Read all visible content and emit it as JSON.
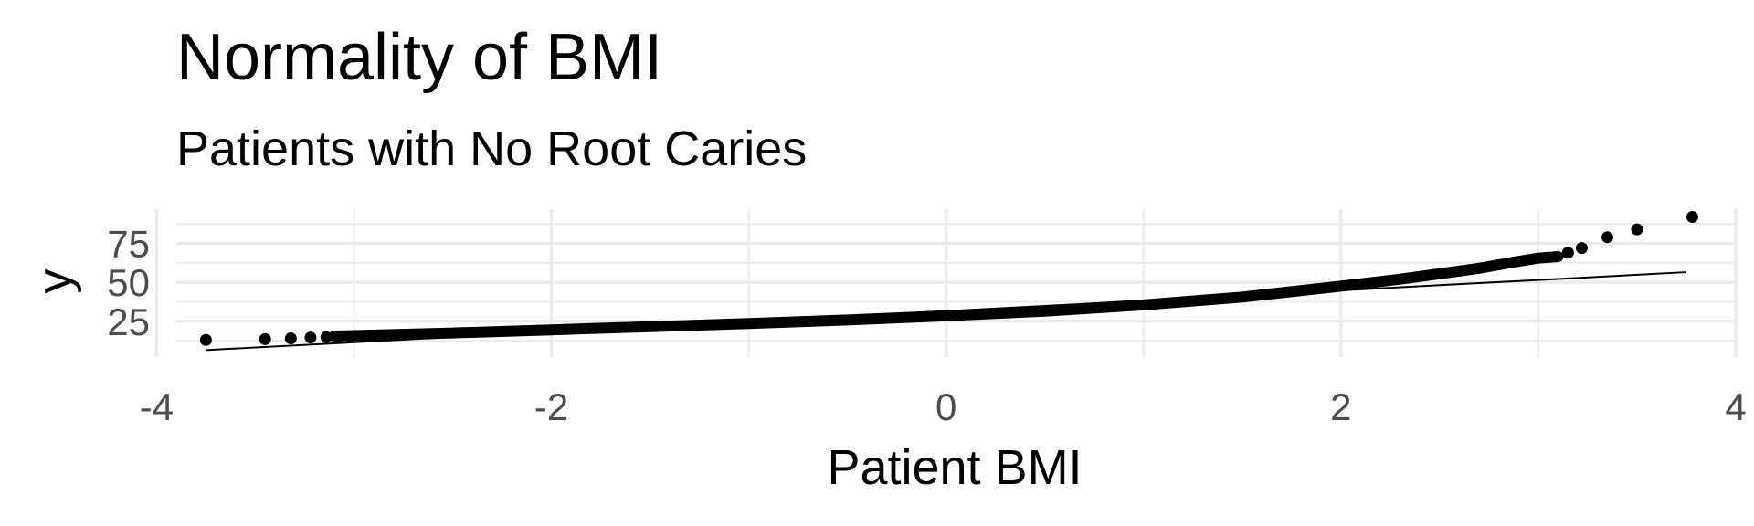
{
  "chart_data": {
    "type": "scatter",
    "title": "Normality of BMI",
    "subtitle": "Patients with No Root Caries",
    "xlabel": "Patient BMI",
    "ylabel": "y",
    "xlim": [
      -3.9,
      4.0
    ],
    "ylim": [
      2,
      97
    ],
    "x_ticks": [
      -4,
      -2,
      0,
      2,
      4
    ],
    "x_tick_labels": [
      "-4",
      "-2",
      "0",
      "2",
      "4"
    ],
    "y_ticks": [
      25,
      50,
      75
    ],
    "y_tick_labels": [
      "25",
      "50",
      "75"
    ],
    "grid": true,
    "reference_line": {
      "x": [
        -3.75,
        3.75
      ],
      "y": [
        6.5,
        56.5
      ]
    },
    "quantile_curve": {
      "x": [
        -3.1,
        -3.0,
        -2.5,
        -2.0,
        -1.5,
        -1.0,
        -0.5,
        0.0,
        0.5,
        1.0,
        1.5,
        2.0,
        2.3,
        2.5,
        2.7,
        2.9,
        3.0,
        3.1
      ],
      "y": [
        15.5,
        15.8,
        17.5,
        19.5,
        21.5,
        23.5,
        25.8,
        28.5,
        31.5,
        35.5,
        40.5,
        47.5,
        52.0,
        55.5,
        59.0,
        63.5,
        65.5,
        66.5
      ]
    },
    "points": {
      "x": [
        -3.75,
        -3.45,
        -3.32,
        -3.22,
        -3.14,
        -3.08,
        -3.02,
        -2.97,
        -2.92,
        -2.87,
        3.15,
        3.22,
        3.35,
        3.5,
        3.78
      ],
      "y": [
        13,
        13.5,
        14,
        14.5,
        14.8,
        15,
        15.2,
        15.4,
        15.5,
        15.6,
        69,
        72,
        79,
        84,
        92
      ]
    }
  }
}
